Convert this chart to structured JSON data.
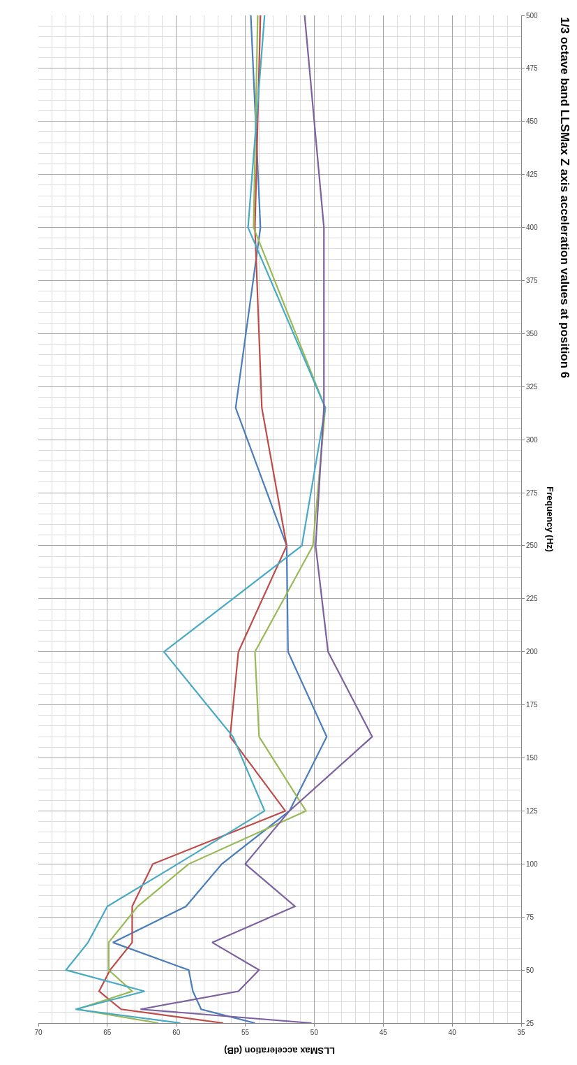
{
  "chart_data": {
    "type": "line",
    "orientation": "horizontal",
    "title": "1/3 octave band LLSMax Z axis acceleration values at position 6",
    "ylabel": "Frequency (Hz)",
    "xlabel": "LLSMax acceleration (dB)",
    "x": [
      25,
      31.5,
      40,
      50,
      63,
      80,
      100,
      125,
      160,
      200,
      250,
      315,
      400,
      500
    ],
    "series": [
      {
        "color": "#4a7ebb",
        "values": [
          54.3,
          58.2,
          58.8,
          59.1,
          64.6,
          59.3,
          56.7,
          51.8,
          49.1,
          51.9,
          52.0,
          55.7,
          53.9,
          54.6
        ]
      },
      {
        "color": "#be4b48",
        "values": [
          56.6,
          64.0,
          65.6,
          64.8,
          63.2,
          63.2,
          61.7,
          52.1,
          56.1,
          55.5,
          52.0,
          53.8,
          54.3,
          53.9
        ]
      },
      {
        "color": "#98b954",
        "values": [
          61.3,
          67.2,
          63.2,
          64.9,
          64.9,
          62.8,
          59.1,
          50.6,
          54.0,
          54.3,
          50.1,
          49.2,
          54.4,
          54.1
        ]
      },
      {
        "color": "#46aac5",
        "values": [
          59.7,
          67.3,
          62.3,
          68.0,
          66.4,
          65.0,
          59.9,
          53.6,
          55.9,
          60.9,
          50.9,
          49.2,
          54.8,
          53.6
        ]
      },
      {
        "color": "#7d60a0",
        "values": [
          50.2,
          62.6,
          55.5,
          54.0,
          57.4,
          51.4,
          55.0,
          51.8,
          45.8,
          49.0,
          49.9,
          49.3,
          49.3,
          50.7
        ]
      }
    ],
    "ylim": [
      25,
      500
    ],
    "yticks": [
      25,
      50,
      75,
      100,
      125,
      150,
      175,
      200,
      225,
      250,
      275,
      300,
      325,
      350,
      375,
      400,
      425,
      450,
      475,
      500
    ],
    "xlim": [
      70,
      35
    ],
    "xticks": [
      70,
      65,
      60,
      55,
      50,
      45,
      40,
      35
    ],
    "grid": true,
    "marker": "none",
    "line_style": "solid",
    "legend": false
  }
}
